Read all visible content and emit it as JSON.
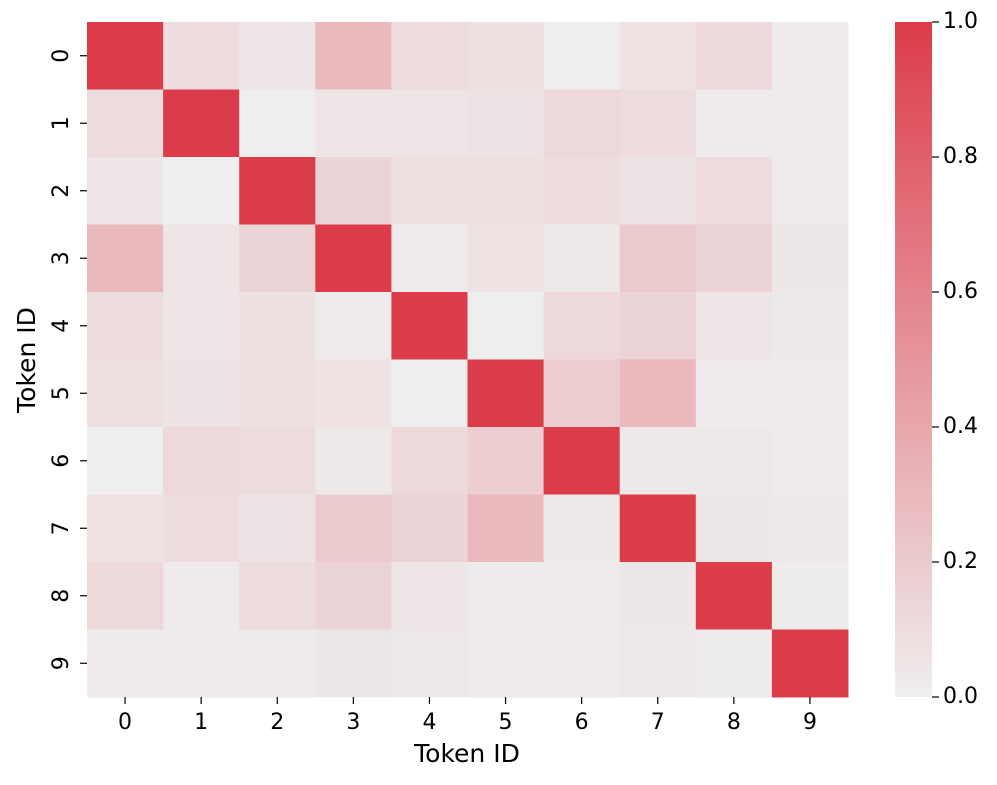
{
  "chart_data": {
    "type": "heatmap",
    "xlabel": "Token ID",
    "ylabel": "Token ID",
    "x_categories": [
      "0",
      "1",
      "2",
      "3",
      "4",
      "5",
      "6",
      "7",
      "8",
      "9"
    ],
    "y_categories": [
      "0",
      "1",
      "2",
      "3",
      "4",
      "5",
      "6",
      "7",
      "8",
      "9"
    ],
    "values": [
      [
        1,
        0.1,
        0.05,
        0.3,
        0.1,
        0.08,
        0.0,
        0.07,
        0.12,
        0.02
      ],
      [
        0.1,
        1,
        0.0,
        0.05,
        0.05,
        0.06,
        0.12,
        0.1,
        0.02,
        0.02
      ],
      [
        0.05,
        0.0,
        1,
        0.15,
        0.08,
        0.08,
        0.1,
        0.06,
        0.1,
        0.02
      ],
      [
        0.3,
        0.05,
        0.15,
        1,
        0.02,
        0.07,
        0.03,
        0.2,
        0.15,
        0.04
      ],
      [
        0.1,
        0.05,
        0.08,
        0.02,
        1,
        0.0,
        0.12,
        0.15,
        0.05,
        0.03
      ],
      [
        0.08,
        0.06,
        0.08,
        0.07,
        0.0,
        1,
        0.18,
        0.3,
        0.02,
        0.02
      ],
      [
        0.0,
        0.12,
        0.1,
        0.03,
        0.12,
        0.18,
        1,
        0.03,
        0.03,
        0.02
      ],
      [
        0.07,
        0.1,
        0.06,
        0.2,
        0.15,
        0.3,
        0.03,
        1,
        0.04,
        0.03
      ],
      [
        0.12,
        0.02,
        0.1,
        0.15,
        0.05,
        0.02,
        0.02,
        0.04,
        1,
        0.01
      ],
      [
        0.02,
        0.02,
        0.02,
        0.04,
        0.03,
        0.02,
        0.02,
        0.03,
        0.01,
        1
      ]
    ],
    "colormap": [
      "#efeeee",
      "#dc3c4a"
    ],
    "clim": [
      0,
      1
    ],
    "cticks": [
      {
        "value": 0,
        "label": "0.0"
      },
      0.2,
      0.4,
      0.6,
      0.8,
      {
        "value": 1,
        "label": "1.0"
      }
    ]
  }
}
